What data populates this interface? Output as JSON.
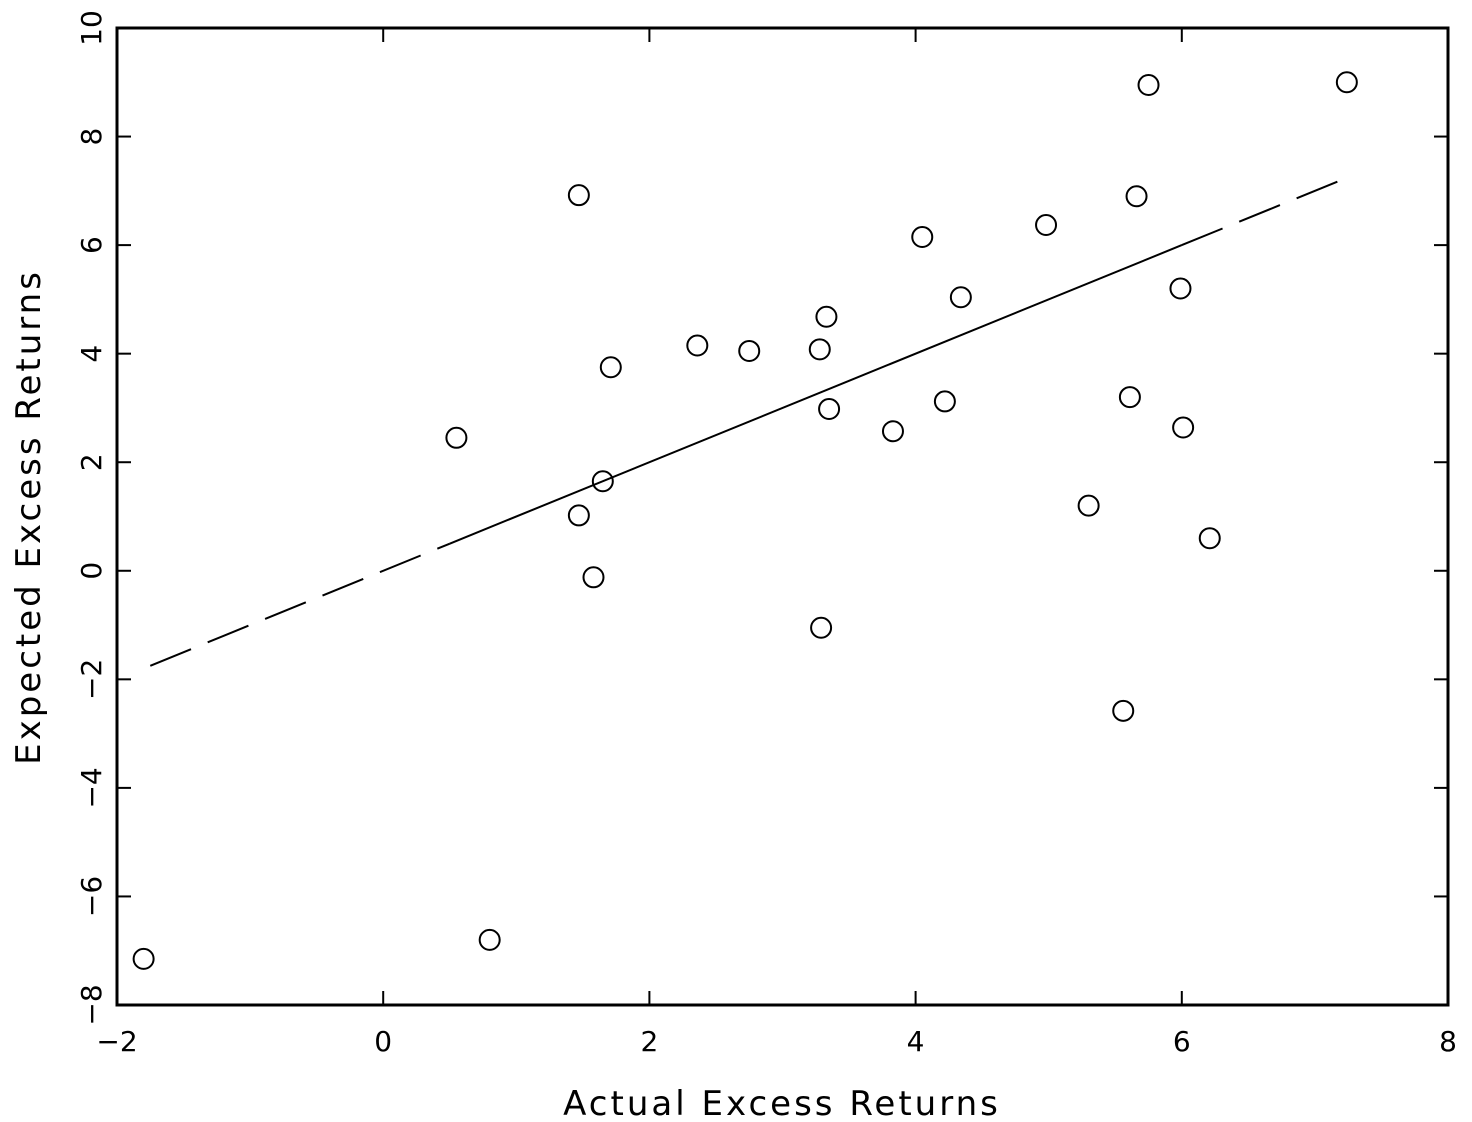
{
  "chart_data": {
    "type": "scatter",
    "title": "",
    "xlabel": "Actual Excess Returns",
    "ylabel": "Expected Excess Returns",
    "xlim": [
      -2,
      8
    ],
    "ylim": [
      -8,
      10
    ],
    "xticks": [
      -2,
      0,
      2,
      4,
      6,
      8
    ],
    "yticks": [
      -8,
      -6,
      -4,
      -2,
      0,
      2,
      4,
      6,
      8,
      10
    ],
    "grid": false,
    "points": [
      {
        "x": -1.8,
        "y": -7.15
      },
      {
        "x": 0.55,
        "y": 2.45
      },
      {
        "x": 0.8,
        "y": -6.8
      },
      {
        "x": 1.47,
        "y": 6.92
      },
      {
        "x": 1.47,
        "y": 1.02
      },
      {
        "x": 1.58,
        "y": -0.12
      },
      {
        "x": 1.65,
        "y": 1.65
      },
      {
        "x": 1.71,
        "y": 3.75
      },
      {
        "x": 2.36,
        "y": 4.15
      },
      {
        "x": 2.75,
        "y": 4.05
      },
      {
        "x": 3.28,
        "y": 4.08
      },
      {
        "x": 3.33,
        "y": 4.68
      },
      {
        "x": 3.35,
        "y": 2.98
      },
      {
        "x": 3.29,
        "y": -1.05
      },
      {
        "x": 3.83,
        "y": 2.57
      },
      {
        "x": 4.05,
        "y": 6.15
      },
      {
        "x": 4.22,
        "y": 3.12
      },
      {
        "x": 4.34,
        "y": 5.04
      },
      {
        "x": 4.98,
        "y": 6.37
      },
      {
        "x": 5.3,
        "y": 1.2
      },
      {
        "x": 5.56,
        "y": -2.58
      },
      {
        "x": 5.61,
        "y": 3.2
      },
      {
        "x": 5.66,
        "y": 6.9
      },
      {
        "x": 5.75,
        "y": 8.95
      },
      {
        "x": 5.99,
        "y": 5.2
      },
      {
        "x": 6.01,
        "y": 2.64
      },
      {
        "x": 6.21,
        "y": 0.6
      },
      {
        "x": 7.24,
        "y": 9.0
      }
    ],
    "fit_line": {
      "x": [
        -1.75,
        7.2
      ],
      "y": [
        -1.75,
        7.2
      ],
      "solid_range": [
        0.5,
        6.0
      ]
    }
  }
}
